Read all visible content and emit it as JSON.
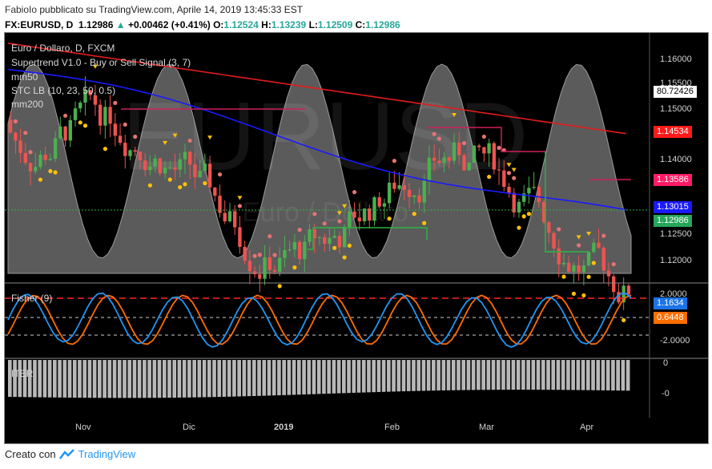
{
  "header": {
    "user": "FabioIo",
    "published": "pubblicato su TradingView.com, Aprile 14, 2019 13:45:33 EST",
    "symbol": "FX:EURUSD, D",
    "last": "1.12986",
    "change": "+0.00462 (+0.41%)",
    "o_label": "O:",
    "o": "1.12524",
    "h_label": "H:",
    "h": "1.13239",
    "l_label": "L:",
    "l": "1.12509",
    "c_label": "C:",
    "c": "1.12986"
  },
  "legend": {
    "title": "Euro / Dollaro, D, FXCM",
    "supertrend": "Supertrend V1.0 - Buy or Sell Signal (3, 7)",
    "mm50": "mm50",
    "stc": "STC LB (10, 23, 50, 0.5)",
    "mm200": "mm200"
  },
  "watermark": {
    "symbol": "EURUSD",
    "name": "Euro / Dollaro"
  },
  "price_axis": {
    "ticks": [
      "1.16000",
      "1.15500",
      "1.15000",
      "1.14500",
      "1.14000",
      "1.13500",
      "1.13000",
      "1.12500",
      "1.12000"
    ],
    "labels": [
      {
        "text": "80.72426",
        "bg": "#ffffff",
        "fg": "#000000"
      },
      {
        "text": "1.14534",
        "bg": "#ff1a1a",
        "fg": "#ffffff"
      },
      {
        "text": "1.13586",
        "bg": "#ff1a66",
        "fg": "#ffffff"
      },
      {
        "text": "1.13015",
        "bg": "#1a1aff",
        "fg": "#ffffff"
      },
      {
        "text": "1.12986",
        "bg": "#26a65b",
        "fg": "#ffffff"
      }
    ]
  },
  "fisher": {
    "title": "Fisher (9)",
    "ticks": [
      "2.0000",
      "-2.0000"
    ],
    "labels": [
      {
        "text": "1.1634",
        "bg": "#1a73e8",
        "fg": "#ffffff"
      },
      {
        "text": "0.6448",
        "bg": "#ff6d00",
        "fg": "#ffffff"
      }
    ]
  },
  "iter": {
    "title": "ITER",
    "ticks": [
      "0",
      "-0"
    ]
  },
  "time_axis": [
    "Nov",
    "Dic",
    "2019",
    "Feb",
    "Mar",
    "Apr"
  ],
  "footer": {
    "created": "Creato con",
    "brand": "TradingView"
  },
  "colors": {
    "up": "#4caf50",
    "down": "#ef5350",
    "mm50": "#1a1aff",
    "mm200": "#e31c1c",
    "stc": "#cc1f5c",
    "fisher1": "#2196f3",
    "fisher2": "#ff6d00"
  }
}
